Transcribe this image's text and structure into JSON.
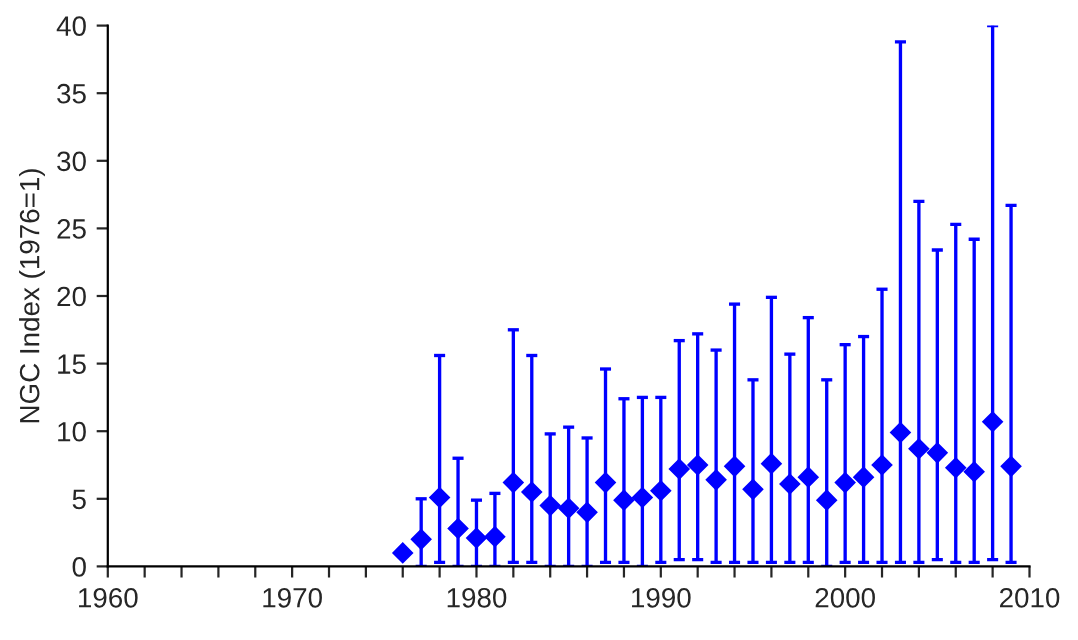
{
  "chart_data": {
    "type": "scatter",
    "ylabel": "NGC Index (1976=1)",
    "marker": "diamond",
    "grid": false,
    "legend": false,
    "x": [
      1976,
      1977,
      1978,
      1979,
      1980,
      1981,
      1982,
      1983,
      1984,
      1985,
      1986,
      1987,
      1988,
      1989,
      1990,
      1991,
      1992,
      1993,
      1994,
      1995,
      1996,
      1997,
      1998,
      1999,
      2000,
      2001,
      2002,
      2003,
      2004,
      2005,
      2006,
      2007,
      2008,
      2009
    ],
    "series": [
      {
        "color": "#0000ff",
        "values": [
          1.0,
          2.0,
          5.1,
          2.8,
          2.1,
          2.2,
          6.2,
          5.5,
          4.5,
          4.3,
          4.0,
          6.2,
          4.9,
          5.1,
          5.6,
          7.2,
          7.5,
          6.4,
          7.4,
          5.7,
          7.6,
          6.1,
          6.6,
          4.9,
          6.2,
          6.6,
          7.5,
          9.9,
          8.7,
          8.4,
          7.3,
          7.0,
          10.7,
          7.4
        ],
        "errors": [
          null,
          [
            0,
            5.0
          ],
          [
            0.3,
            15.6
          ],
          [
            0,
            8.0
          ],
          [
            0,
            4.9
          ],
          [
            0,
            5.4
          ],
          [
            0.3,
            17.5
          ],
          [
            0.3,
            15.6
          ],
          [
            0,
            9.8
          ],
          [
            0,
            10.3
          ],
          [
            0,
            9.5
          ],
          [
            0.3,
            14.6
          ],
          [
            0.3,
            12.4
          ],
          [
            0,
            12.5
          ],
          [
            0.3,
            12.5
          ],
          [
            0.5,
            16.7
          ],
          [
            0.5,
            17.2
          ],
          [
            0.3,
            16.0
          ],
          [
            0.3,
            19.4
          ],
          [
            0.3,
            13.8
          ],
          [
            0.3,
            19.9
          ],
          [
            0.3,
            15.7
          ],
          [
            0.3,
            18.4
          ],
          [
            0,
            13.8
          ],
          [
            0.3,
            16.4
          ],
          [
            0.3,
            17.0
          ],
          [
            0.3,
            20.5
          ],
          [
            0.3,
            38.8
          ],
          [
            0.3,
            27.0
          ],
          [
            0.5,
            23.4
          ],
          [
            0.3,
            25.3
          ],
          [
            0.3,
            24.2
          ],
          [
            0.5,
            40
          ],
          [
            0.3,
            26.7
          ]
        ]
      }
    ],
    "xlim": [
      1960,
      2010
    ],
    "xticks": [
      1960,
      {
        "value": 1962,
        "label": null
      },
      {
        "value": 1964,
        "label": null
      },
      {
        "value": 1966,
        "label": null
      },
      {
        "value": 1968,
        "label": null
      },
      1970,
      {
        "value": 1972,
        "label": null
      },
      {
        "value": 1974,
        "label": null
      },
      {
        "value": 1976,
        "label": null
      },
      {
        "value": 1978,
        "label": null
      },
      1980,
      {
        "value": 1982,
        "label": null
      },
      {
        "value": 1984,
        "label": null
      },
      {
        "value": 1986,
        "label": null
      },
      {
        "value": 1988,
        "label": null
      },
      1990,
      {
        "value": 1992,
        "label": null
      },
      {
        "value": 1994,
        "label": null
      },
      {
        "value": 1996,
        "label": null
      },
      {
        "value": 1998,
        "label": null
      },
      2000,
      {
        "value": 2002,
        "label": null
      },
      {
        "value": 2004,
        "label": null
      },
      {
        "value": 2006,
        "label": null
      },
      {
        "value": 2008,
        "label": null
      },
      2010
    ],
    "ylim": [
      0,
      40
    ],
    "yticks": [
      0,
      5,
      10,
      15,
      20,
      25,
      30,
      35,
      40
    ]
  }
}
